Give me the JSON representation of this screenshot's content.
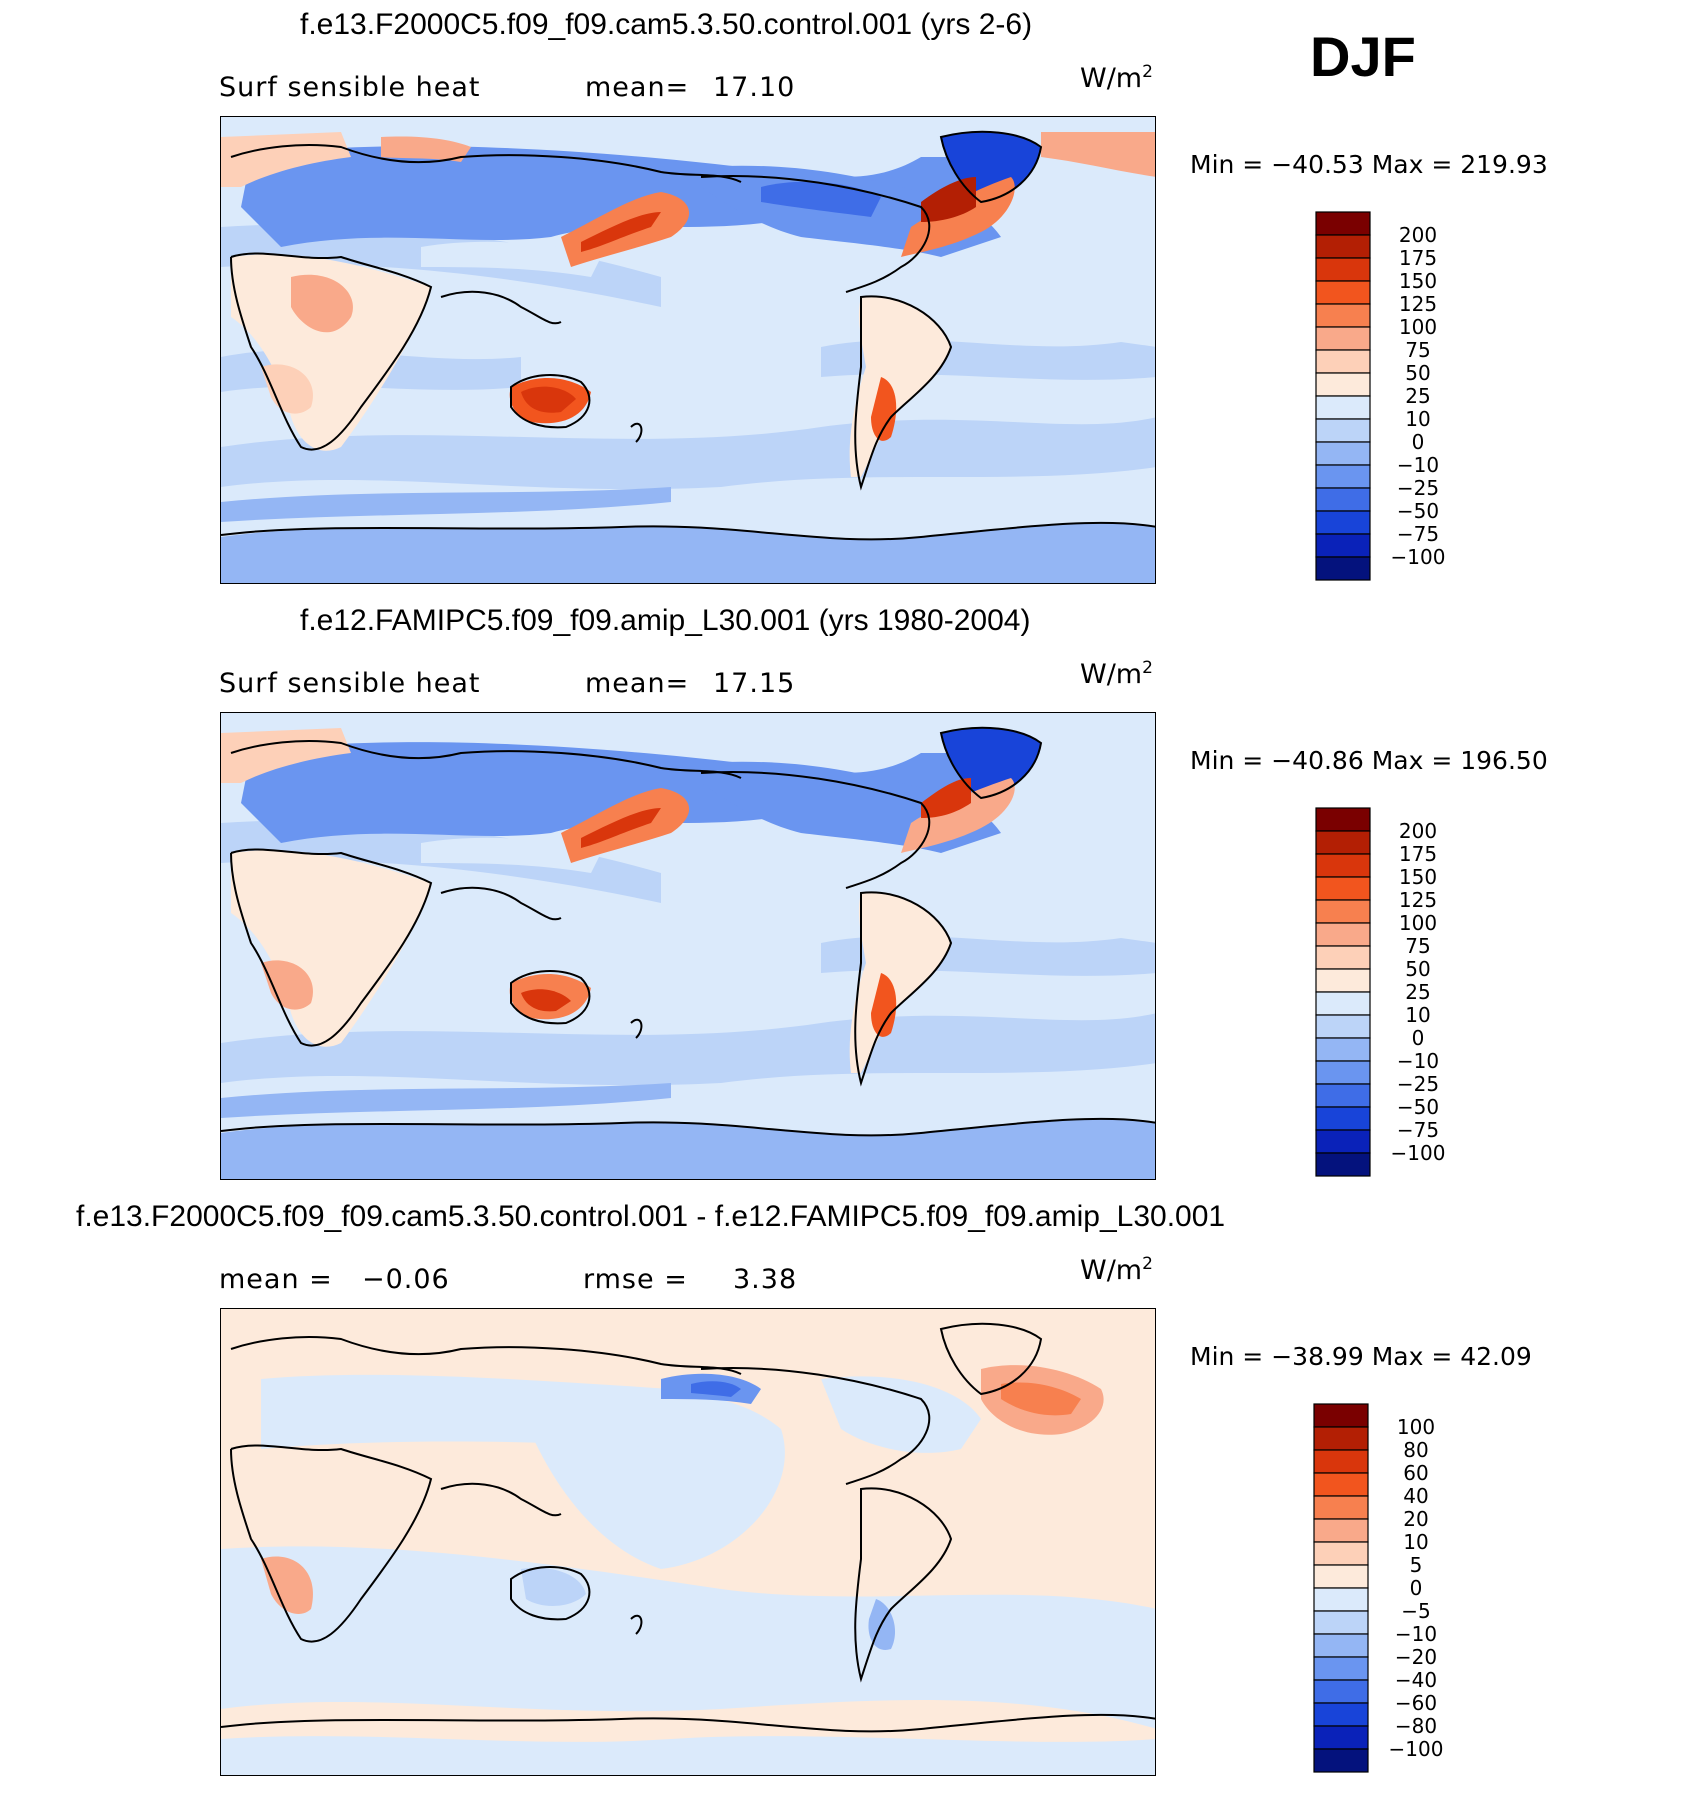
{
  "season": "DJF",
  "units_base": "W/m",
  "units_exp": "2",
  "panels": [
    {
      "title": "f.e13.F2000C5.f09_f09.cam5.3.50.control.001 (yrs 2-6)",
      "left_label": "Surf  sensible  heat",
      "stat_label": "mean=",
      "stat_value": "17.10",
      "min_label": "Min  =",
      "min_value": "−40.53",
      "max_label": "Max  =",
      "max_value": "219.93",
      "levels": [
        "200",
        "175",
        "150",
        "125",
        "100",
        "75",
        "50",
        "25",
        "10",
        "0",
        "−10",
        "−25",
        "−50",
        "−75",
        "−100"
      ]
    },
    {
      "title": "f.e12.FAMIPC5.f09_f09.amip_L30.001 (yrs 1980-2004)",
      "left_label": "Surf  sensible  heat",
      "stat_label": "mean=",
      "stat_value": "17.15",
      "min_label": "Min  =",
      "min_value": "−40.86",
      "max_label": "Max  =",
      "max_value": "196.50",
      "levels": [
        "200",
        "175",
        "150",
        "125",
        "100",
        "75",
        "50",
        "25",
        "10",
        "0",
        "−10",
        "−25",
        "−50",
        "−75",
        "−100"
      ]
    },
    {
      "title": "f.e13.F2000C5.f09_f09.cam5.3.50.control.001 - f.e12.FAMIPC5.f09_f09.amip_L30.001",
      "left_label": "mean  =",
      "left_value": "−0.06",
      "stat_label": "rmse  =",
      "stat_value": "3.38",
      "min_label": "Min  =",
      "min_value": "−38.99",
      "max_label": "Max  =",
      "max_value": "42.09",
      "levels": [
        "100",
        "80",
        "60",
        "40",
        "20",
        "10",
        "5",
        "0",
        "−5",
        "−10",
        "−20",
        "−40",
        "−60",
        "−80",
        "−100"
      ]
    }
  ],
  "colors": {
    "scale": [
      "#7a0000",
      "#b31f04",
      "#d9360c",
      "#f2551e",
      "#f7804f",
      "#f9a98a",
      "#fdd0b8",
      "#fdeadb",
      "#dbeafb",
      "#bcd4f8",
      "#94b6f4",
      "#6a95f0",
      "#3f6de7",
      "#1844d9",
      "#0a22b9",
      "#04127d"
    ],
    "ocean_ctrl": "#dbeafb",
    "ocean_diff": "#fdeadb"
  },
  "chart_data": [
    {
      "type": "heatmap",
      "title": "f.e13.F2000C5.f09_f09.cam5.3.50.control.001 (yrs 2-6)",
      "variable": "Surf sensible heat",
      "units": "W/m2",
      "mean": 17.1,
      "min": -40.53,
      "max": 219.93,
      "contour_levels": [
        -100,
        -75,
        -50,
        -25,
        -10,
        0,
        10,
        25,
        50,
        75,
        100,
        125,
        150,
        175,
        200
      ]
    },
    {
      "type": "heatmap",
      "title": "f.e12.FAMIPC5.f09_f09.amip_L30.001 (yrs 1980-2004)",
      "variable": "Surf sensible heat",
      "units": "W/m2",
      "mean": 17.15,
      "min": -40.86,
      "max": 196.5,
      "contour_levels": [
        -100,
        -75,
        -50,
        -25,
        -10,
        0,
        10,
        25,
        50,
        75,
        100,
        125,
        150,
        175,
        200
      ]
    },
    {
      "type": "heatmap",
      "title": "f.e13.F2000C5.f09_f09.cam5.3.50.control.001 - f.e12.FAMIPC5.f09_f09.amip_L30.001",
      "units": "W/m2",
      "mean": -0.06,
      "rmse": 3.38,
      "min": -38.99,
      "max": 42.09,
      "contour_levels": [
        -100,
        -80,
        -60,
        -40,
        -20,
        -10,
        -5,
        0,
        5,
        10,
        20,
        40,
        60,
        80,
        100
      ]
    }
  ]
}
